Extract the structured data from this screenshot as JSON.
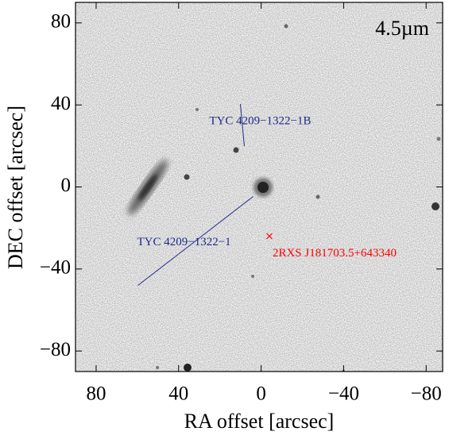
{
  "chart_data": {
    "type": "image",
    "band_label": "4.5µm",
    "xlabel": "RA offset [arcsec]",
    "ylabel": "DEC offset [arcsec]",
    "xlim": [
      90,
      -88
    ],
    "ylim": [
      -90,
      90
    ],
    "xticks": [
      80,
      40,
      0,
      {
        "value": -40,
        "label": "−40"
      },
      {
        "value": -80,
        "label": "−80"
      }
    ],
    "yticks": [
      {
        "value": -80,
        "label": "−80"
      },
      {
        "value": -40,
        "label": "−40"
      },
      0,
      40,
      80
    ],
    "annotations": [
      {
        "text": "TYC 4209−1322−1B",
        "x": 12,
        "y": 18,
        "color": "#1f2a8a"
      },
      {
        "text": "TYC 4209−1322−1",
        "x": 0,
        "y": 0,
        "color": "#1f2a8a"
      },
      {
        "text": "2RXS J181703.5+643340",
        "x": -4,
        "y": -24,
        "color": "#ff0000"
      }
    ]
  }
}
